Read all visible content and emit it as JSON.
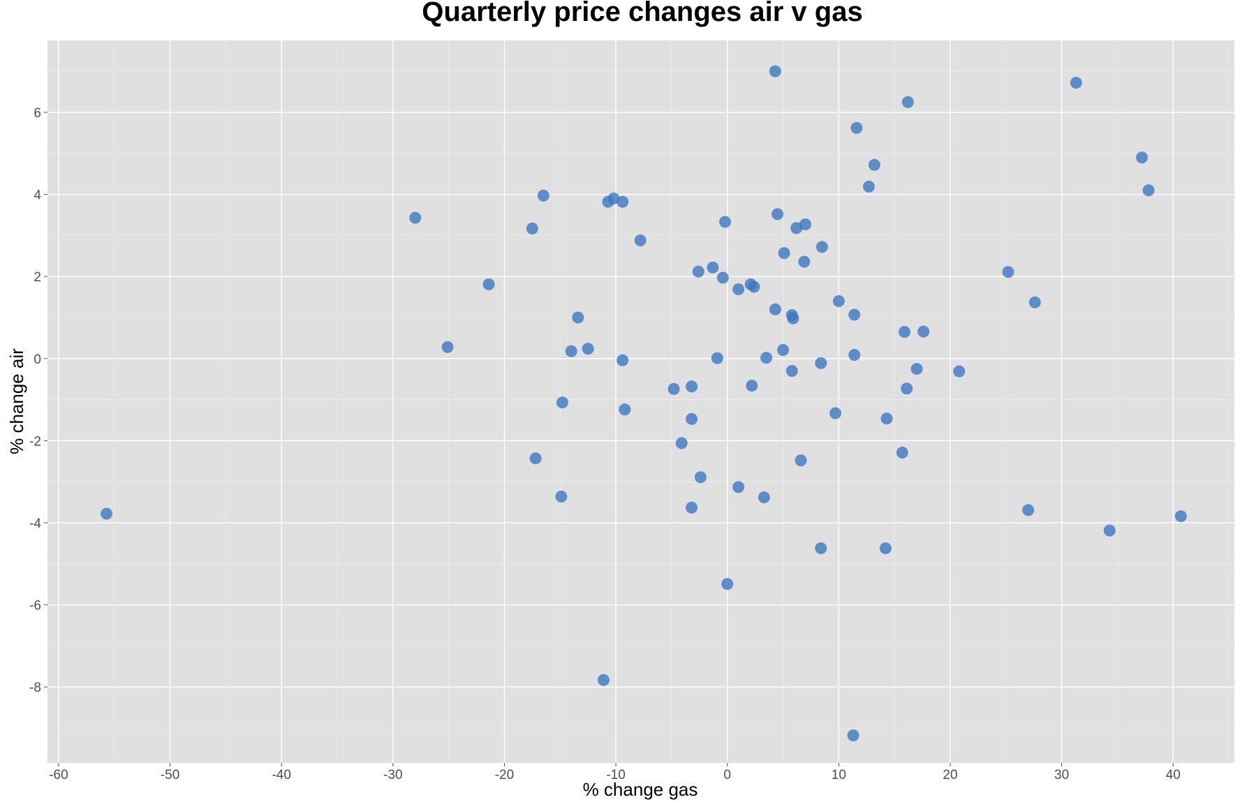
{
  "chart_data": {
    "type": "scatter",
    "title": "Quarterly price changes air v gas",
    "xlabel": "% change gas",
    "ylabel": "% change air",
    "xlim": [
      -61,
      45.5
    ],
    "ylim": [
      -9.85,
      7.75
    ],
    "x_ticks": [
      -60,
      -50,
      -40,
      -30,
      -20,
      -10,
      0,
      10,
      20,
      30,
      40
    ],
    "y_ticks": [
      -8,
      -6,
      -4,
      -2,
      0,
      2,
      4,
      6
    ],
    "grid": true,
    "point_color": "#3b78c2",
    "background_color": "#e0e0e0",
    "points": [
      {
        "x": 4.3,
        "y": 7.0
      },
      {
        "x": 31.3,
        "y": 6.72
      },
      {
        "x": 16.2,
        "y": 6.25
      },
      {
        "x": 11.6,
        "y": 5.62
      },
      {
        "x": 37.2,
        "y": 4.9
      },
      {
        "x": 13.2,
        "y": 4.72
      },
      {
        "x": 12.7,
        "y": 4.19
      },
      {
        "x": 37.8,
        "y": 4.1
      },
      {
        "x": -16.5,
        "y": 3.97
      },
      {
        "x": -10.2,
        "y": 3.9
      },
      {
        "x": -10.7,
        "y": 3.82
      },
      {
        "x": -9.4,
        "y": 3.82
      },
      {
        "x": -28.0,
        "y": 3.43
      },
      {
        "x": 4.5,
        "y": 3.52
      },
      {
        "x": -0.2,
        "y": 3.33
      },
      {
        "x": 7.0,
        "y": 3.27
      },
      {
        "x": 6.2,
        "y": 3.18
      },
      {
        "x": -17.5,
        "y": 3.17
      },
      {
        "x": -7.8,
        "y": 2.88
      },
      {
        "x": 8.5,
        "y": 2.72
      },
      {
        "x": 5.1,
        "y": 2.57
      },
      {
        "x": 6.9,
        "y": 2.36
      },
      {
        "x": -1.3,
        "y": 2.22
      },
      {
        "x": -2.6,
        "y": 2.12
      },
      {
        "x": 25.2,
        "y": 2.11
      },
      {
        "x": -0.4,
        "y": 1.97
      },
      {
        "x": -21.4,
        "y": 1.81
      },
      {
        "x": 2.1,
        "y": 1.81
      },
      {
        "x": 2.4,
        "y": 1.75
      },
      {
        "x": 1.0,
        "y": 1.69
      },
      {
        "x": 10.0,
        "y": 1.4
      },
      {
        "x": 27.6,
        "y": 1.37
      },
      {
        "x": 4.3,
        "y": 1.2
      },
      {
        "x": 5.8,
        "y": 1.06
      },
      {
        "x": 11.4,
        "y": 1.07
      },
      {
        "x": 5.9,
        "y": 0.98
      },
      {
        "x": -13.4,
        "y": 1.0
      },
      {
        "x": 15.9,
        "y": 0.65
      },
      {
        "x": 17.6,
        "y": 0.66
      },
      {
        "x": -25.1,
        "y": 0.28
      },
      {
        "x": -12.5,
        "y": 0.24
      },
      {
        "x": -14.0,
        "y": 0.18
      },
      {
        "x": 5.0,
        "y": 0.21
      },
      {
        "x": 11.4,
        "y": 0.09
      },
      {
        "x": -0.9,
        "y": 0.01
      },
      {
        "x": 3.5,
        "y": 0.02
      },
      {
        "x": -9.4,
        "y": -0.04
      },
      {
        "x": 8.4,
        "y": -0.11
      },
      {
        "x": 17.0,
        "y": -0.25
      },
      {
        "x": 5.8,
        "y": -0.3
      },
      {
        "x": 20.8,
        "y": -0.31
      },
      {
        "x": 2.2,
        "y": -0.66
      },
      {
        "x": -3.2,
        "y": -0.68
      },
      {
        "x": -4.8,
        "y": -0.74
      },
      {
        "x": 16.1,
        "y": -0.73
      },
      {
        "x": -14.8,
        "y": -1.07
      },
      {
        "x": -9.2,
        "y": -1.24
      },
      {
        "x": 9.7,
        "y": -1.33
      },
      {
        "x": -3.2,
        "y": -1.47
      },
      {
        "x": 14.3,
        "y": -1.46
      },
      {
        "x": -4.1,
        "y": -2.06
      },
      {
        "x": 15.7,
        "y": -2.29
      },
      {
        "x": -17.2,
        "y": -2.43
      },
      {
        "x": 6.6,
        "y": -2.48
      },
      {
        "x": -2.4,
        "y": -2.89
      },
      {
        "x": 1.0,
        "y": -3.13
      },
      {
        "x": -14.9,
        "y": -3.36
      },
      {
        "x": 3.3,
        "y": -3.38
      },
      {
        "x": -3.2,
        "y": -3.63
      },
      {
        "x": 27.0,
        "y": -3.69
      },
      {
        "x": -55.7,
        "y": -3.78
      },
      {
        "x": 40.7,
        "y": -3.84
      },
      {
        "x": 34.3,
        "y": -4.19
      },
      {
        "x": 8.4,
        "y": -4.62
      },
      {
        "x": 14.2,
        "y": -4.62
      },
      {
        "x": 0.0,
        "y": -5.49
      },
      {
        "x": -11.1,
        "y": -7.83
      },
      {
        "x": 11.3,
        "y": -9.18
      }
    ]
  }
}
